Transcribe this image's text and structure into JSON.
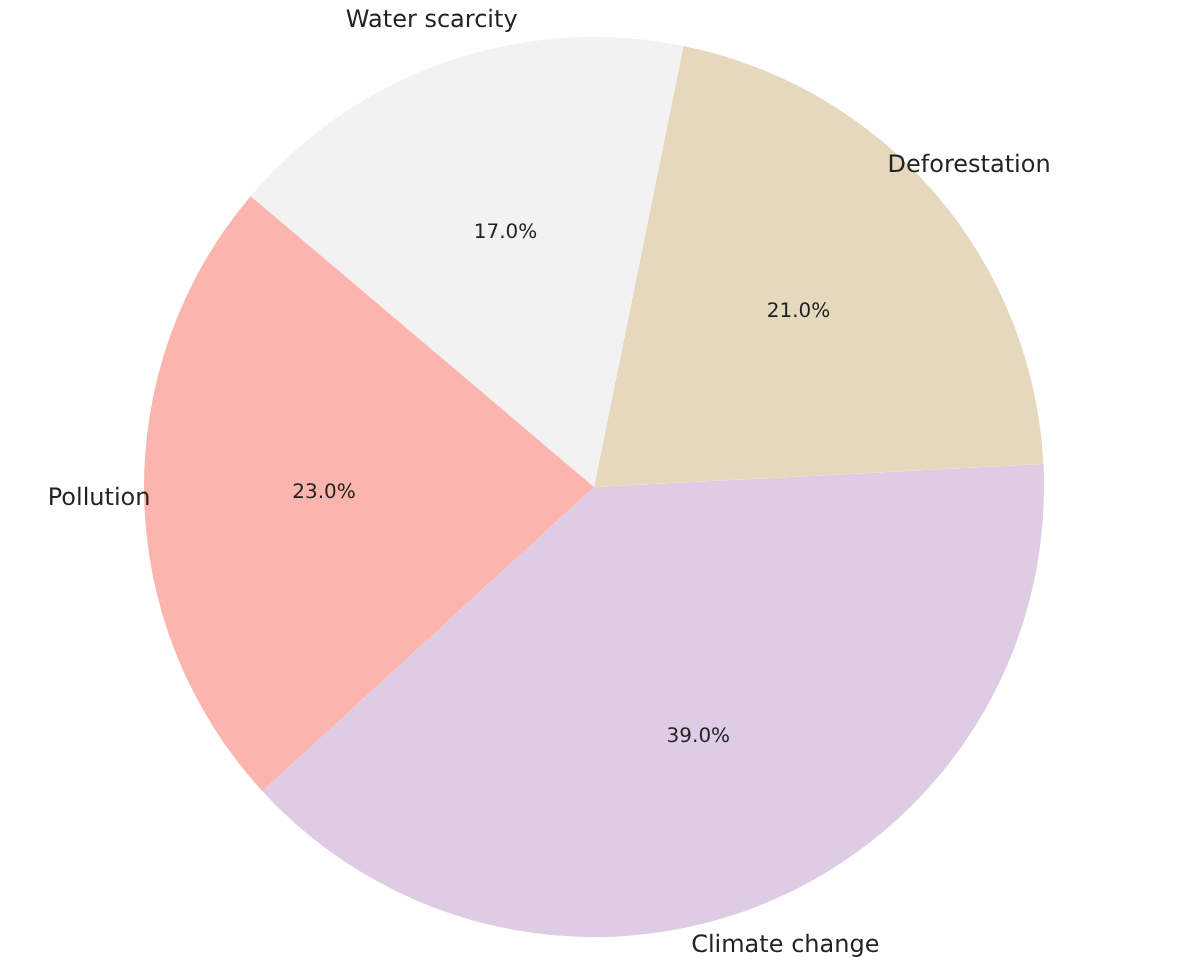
{
  "chart_data": {
    "type": "pie",
    "categories": [
      "Climate change",
      "Deforestation",
      "Water scarcity",
      "Pollution"
    ],
    "values": [
      39,
      21,
      17,
      23
    ],
    "colors": [
      "#decbe4",
      "#e5d8bd",
      "#f2f2f2",
      "#fbb4ae"
    ],
    "value_labels": [
      "39.0%",
      "21.0%",
      "17.0%",
      "23.0%"
    ]
  }
}
